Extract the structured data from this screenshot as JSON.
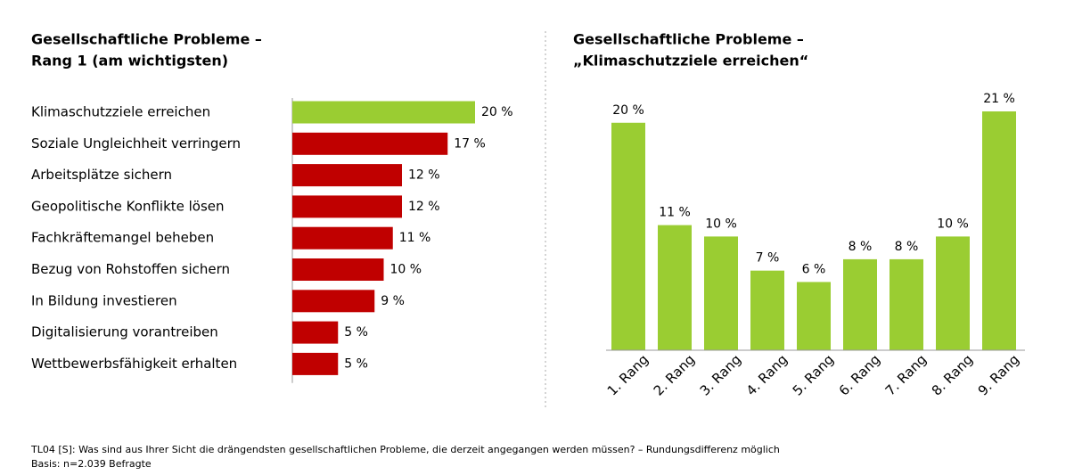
{
  "chart_data": [
    {
      "type": "hbar",
      "title": [
        "Gesellschaftliche Probleme –",
        "Rang 1 (am wichtigsten)"
      ],
      "categories": [
        "Klimaschutzziele erreichen",
        "Soziale Ungleichheit verringern",
        "Arbeitsplätze sichern",
        "Geopolitische Konflikte lösen",
        "Fachkräftemangel beheben",
        "Bezug von Rohstoffen sichern",
        "In Bildung investieren",
        "Digitalisierung vorantreiben",
        "Wettbewerbsfähigkeit erhalten"
      ],
      "values": [
        20,
        17,
        12,
        12,
        11,
        10,
        9,
        5,
        5
      ],
      "value_labels": [
        "20 %",
        "17 %",
        "12 %",
        "12 %",
        "11 %",
        "10 %",
        "9 %",
        "5 %",
        "5 %"
      ],
      "colors": [
        "#9acd32",
        "#c00000",
        "#c00000",
        "#c00000",
        "#c00000",
        "#c00000",
        "#c00000",
        "#c00000",
        "#c00000"
      ],
      "xlim": [
        0,
        20
      ]
    },
    {
      "type": "bar",
      "title": [
        "Gesellschaftliche Probleme –",
        "„Klimaschutzziele erreichen“"
      ],
      "categories": [
        "1. Rang",
        "2. Rang",
        "3. Rang",
        "4. Rang",
        "5. Rang",
        "6. Rang",
        "7. Rang",
        "8. Rang",
        "9. Rang"
      ],
      "values": [
        20,
        11,
        10,
        7,
        6,
        8,
        8,
        10,
        21
      ],
      "value_labels": [
        "20 %",
        "11 %",
        "10 %",
        "7 %",
        "6 %",
        "8 %",
        "8 %",
        "10 %",
        "21 %"
      ],
      "color": "#9acd32",
      "ylim": [
        0,
        21
      ]
    }
  ],
  "footnote": [
    "TL04 [S]: Was sind aus Ihrer Sicht die drängendsten gesellschaftlichen Probleme, die derzeit angegangen werden müssen? – Rundungsdifferenz möglich",
    "Basis: n=2.039 Befragte"
  ]
}
